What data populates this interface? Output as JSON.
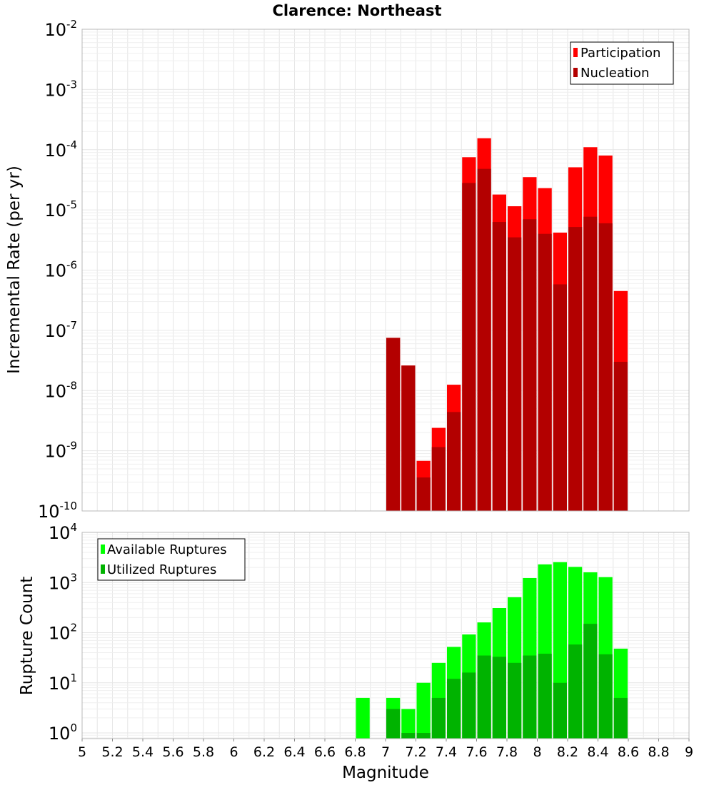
{
  "chart_data": [
    {
      "type": "bar",
      "title": "Clarence: Northeast",
      "xlabel": "",
      "ylabel": "Incremental Rate (per yr)",
      "xlim": [
        5,
        9
      ],
      "ylim": [
        1e-10,
        0.01
      ],
      "yscale": "log",
      "grid": true,
      "legend_position": "top-right",
      "bar_width": 0.1,
      "y_ticks": [
        {
          "base": "10",
          "exp": "-10"
        },
        {
          "base": "10",
          "exp": "-9"
        },
        {
          "base": "10",
          "exp": "-8"
        },
        {
          "base": "10",
          "exp": "-7"
        },
        {
          "base": "10",
          "exp": "-6"
        },
        {
          "base": "10",
          "exp": "-5"
        },
        {
          "base": "10",
          "exp": "-4"
        },
        {
          "base": "10",
          "exp": "-3"
        },
        {
          "base": "10",
          "exp": "-2"
        }
      ],
      "x": [
        7.0,
        7.1,
        7.2,
        7.3,
        7.4,
        7.5,
        7.6,
        7.7,
        7.8,
        7.9,
        8.0,
        8.1,
        8.2,
        8.3,
        8.4,
        8.5
      ],
      "series": [
        {
          "name": "Participation",
          "color": "#ff0000",
          "values": [
            7.5e-08,
            2.6e-08,
            6.8e-10,
            2.4e-09,
            1.25e-08,
            7.5e-05,
            0.000155,
            1.8e-05,
            1.15e-05,
            3.5e-05,
            2.3e-05,
            4.2e-06,
            5.1e-05,
            0.00011,
            8e-05,
            4.5e-07
          ]
        },
        {
          "name": "Nucleation",
          "color": "#b30000",
          "values": [
            7.5e-08,
            2.6e-08,
            3.6e-10,
            1.15e-09,
            4.4e-09,
            2.8e-05,
            4.8e-05,
            6.3e-06,
            3.5e-06,
            7e-06,
            4e-06,
            5.8e-07,
            5.2e-06,
            7.7e-06,
            6e-06,
            3e-08
          ]
        }
      ]
    },
    {
      "type": "bar",
      "title": "",
      "xlabel": "Magnitude",
      "ylabel": "Rupture Count",
      "xlim": [
        5,
        9
      ],
      "ylim": [
        0.77,
        10000
      ],
      "yscale": "log",
      "grid": true,
      "legend_position": "top-left",
      "bar_width": 0.1,
      "x_ticks": [
        "5",
        "5.2",
        "5.4",
        "5.6",
        "5.8",
        "6",
        "6.2",
        "6.4",
        "6.6",
        "6.8",
        "7",
        "7.2",
        "7.4",
        "7.6",
        "7.8",
        "8",
        "8.2",
        "8.4",
        "8.6",
        "8.8",
        "9"
      ],
      "y_ticks": [
        {
          "base": "10",
          "exp": "0"
        },
        {
          "base": "10",
          "exp": "1"
        },
        {
          "base": "10",
          "exp": "2"
        },
        {
          "base": "10",
          "exp": "3"
        },
        {
          "base": "10",
          "exp": "4"
        }
      ],
      "x": [
        6.8,
        7.0,
        7.1,
        7.2,
        7.3,
        7.4,
        7.5,
        7.6,
        7.7,
        7.8,
        7.9,
        8.0,
        8.1,
        8.2,
        8.3,
        8.4,
        8.5
      ],
      "series": [
        {
          "name": "Available Ruptures",
          "color": "#00ff00",
          "values": [
            5,
            5,
            3,
            10,
            25,
            52,
            92,
            160,
            310,
            510,
            1230,
            2300,
            2550,
            2050,
            1600,
            1280,
            48
          ]
        },
        {
          "name": "Utilized Ruptures",
          "color": "#00b300",
          "values": [
            0,
            3,
            1,
            1,
            5,
            12,
            16,
            35,
            33,
            25,
            35,
            38,
            10,
            58,
            150,
            37,
            5
          ]
        }
      ]
    }
  ]
}
